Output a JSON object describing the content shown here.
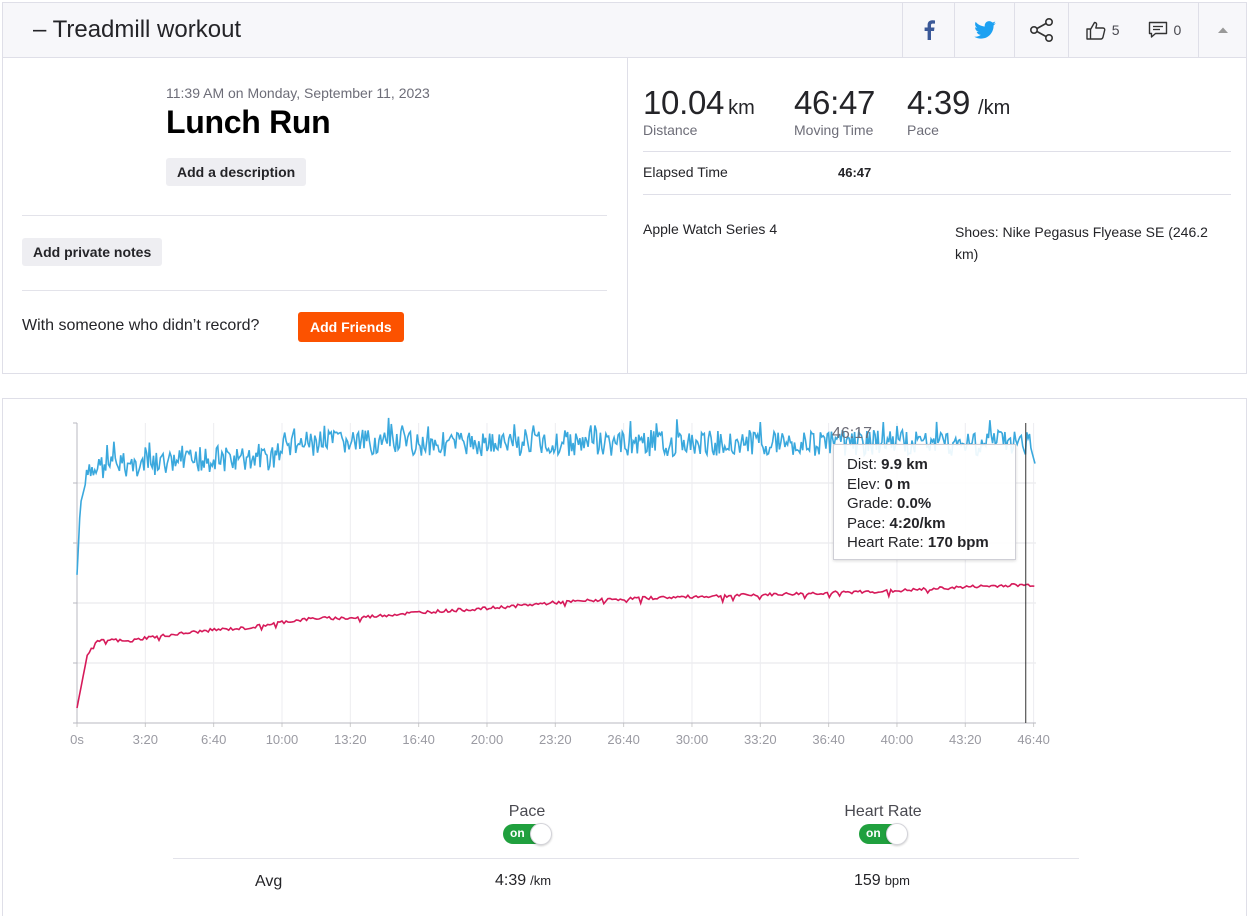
{
  "header": {
    "title": "– Treadmill workout",
    "kudos_count": "5",
    "comments_count": "0"
  },
  "activity": {
    "datetime": "11:39 AM on Monday, September 11, 2023",
    "name": "Lunch Run",
    "add_description_label": "Add a description",
    "add_notes_label": "Add private notes",
    "with_someone_text": "With someone who didn’t record?",
    "add_friends_label": "Add Friends"
  },
  "stats": {
    "distance": {
      "value": "10.04",
      "unit": "km",
      "label": "Distance"
    },
    "moving_time": {
      "value": "46:47",
      "label": "Moving Time"
    },
    "pace": {
      "value": "4:39",
      "unit": "/km",
      "label": "Pace"
    },
    "elapsed_label": "Elapsed Time",
    "elapsed_value": "46:47",
    "device": "Apple Watch Series 4",
    "shoes": "Shoes: Nike Pegasus Flyease SE (246.2 km)"
  },
  "colors": {
    "brand_orange": "#fc5200",
    "pace_line": "#3aa8dd",
    "hr_line": "#d61a5a",
    "toggle_on": "#20a03e",
    "facebook": "#3b5998",
    "twitter": "#1da1f2"
  },
  "icons": [
    "facebook-icon",
    "twitter-icon",
    "share-icon",
    "thumbs-up-icon",
    "comment-icon",
    "caret-up-icon"
  ],
  "chart_data": {
    "type": "line",
    "x_unit": "elapsed time",
    "x_tick_labels": [
      "0s",
      "3:20",
      "6:40",
      "10:00",
      "13:20",
      "16:40",
      "20:00",
      "23:20",
      "26:40",
      "30:00",
      "33:20",
      "36:40",
      "40:00",
      "43:20",
      "46:40"
    ],
    "x_tick_seconds": [
      0,
      200,
      400,
      600,
      800,
      1000,
      1200,
      1400,
      1600,
      1800,
      2000,
      2200,
      2400,
      2600,
      2800
    ],
    "xlim_seconds": [
      0,
      2807
    ],
    "grid": true,
    "series": [
      {
        "name": "Pace",
        "unit": "/km",
        "approx_trend_seconds": [
          0,
          10,
          30,
          60,
          120,
          200,
          300,
          400,
          560,
          620,
          800,
          1000,
          1200,
          1400,
          1600,
          1800,
          2000,
          2200,
          2400,
          2600,
          2750,
          2790,
          2807
        ],
        "approx_trend_pace_sec_per_km": [
          345,
          300,
          283,
          277,
          275,
          276,
          274,
          272,
          272,
          263,
          261,
          262,
          262,
          262,
          262,
          262,
          261,
          262,
          261,
          262,
          260,
          263,
          277
        ]
      },
      {
        "name": "Heart Rate",
        "unit": "bpm",
        "approx_trend_seconds": [
          0,
          30,
          60,
          100,
          150,
          200,
          300,
          400,
          500,
          600,
          700,
          800,
          1000,
          1200,
          1400,
          1600,
          1800,
          2000,
          2200,
          2400,
          2600,
          2750,
          2807
        ],
        "approx_trend_bpm": [
          103,
          130,
          137,
          138,
          137,
          139,
          141,
          143,
          144,
          147,
          149,
          149,
          152,
          154,
          157,
          159,
          160,
          161,
          162,
          163,
          165,
          166,
          166
        ]
      }
    ],
    "cursor": {
      "time": "46:17",
      "dist_label": "Dist:",
      "dist": "9.9 km",
      "elev_label": "Elev:",
      "elev": "0 m",
      "grade_label": "Grade:",
      "grade": "0.0%",
      "pace_label": "Pace:",
      "pace": "4:20/km",
      "hr_label": "Heart Rate:",
      "hr": "170 bpm"
    }
  },
  "legend": {
    "pace_label": "Pace",
    "hr_label": "Heart Rate",
    "toggle_on_text": "on"
  },
  "summary": {
    "avg_label": "Avg",
    "pace_avg": "4:39",
    "pace_unit": "/km",
    "hr_avg": "159",
    "hr_unit": "bpm"
  }
}
